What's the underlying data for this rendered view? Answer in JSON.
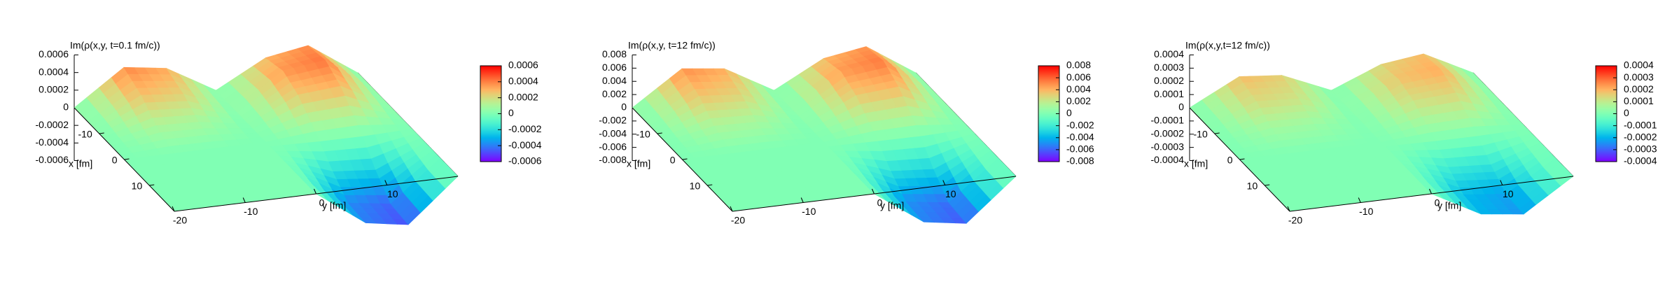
{
  "chart_data": [
    {
      "type": "surface",
      "title": "Im(ρ(x,y, t=0.1 fm/c))",
      "xlabel": "x [fm]",
      "ylabel": "y [fm]",
      "x": [
        -20,
        -13,
        -7,
        0,
        7,
        13,
        20
      ],
      "y": [
        -20,
        -13,
        -7,
        0,
        7,
        13,
        20
      ],
      "z": [
        [
          0,
          0.00039,
          0.00032,
          0,
          0.0003,
          0.00038,
          0
        ],
        [
          0,
          0.00028,
          0.00023,
          0,
          0.00036,
          0.00042,
          0
        ],
        [
          0,
          0.00011,
          9e-05,
          0,
          0.00026,
          0.0003,
          0
        ],
        [
          0,
          0,
          0,
          0,
          5e-05,
          6e-05,
          0
        ],
        [
          0,
          0,
          0,
          0,
          -0.0002,
          -0.00024,
          0
        ],
        [
          0,
          0,
          0,
          0,
          -0.00038,
          -0.00045,
          0
        ],
        [
          0,
          0,
          0,
          0,
          -0.0004,
          -0.00048,
          0
        ]
      ],
      "xlim": [
        -20,
        20
      ],
      "xticks": [
        -10,
        0,
        10
      ],
      "ylim": [
        -20,
        20
      ],
      "yticks": [
        -20,
        -10,
        0,
        10
      ],
      "zlim": [
        -0.0006,
        0.0006
      ],
      "zticks": [
        -0.0006,
        -0.0004,
        -0.0002,
        0,
        0.0002,
        0.0004,
        0.0006
      ],
      "cblim": [
        -0.0006,
        0.0006
      ],
      "cbticks": [
        -0.0006,
        -0.0004,
        -0.0002,
        0,
        0.0002,
        0.0004,
        0.0006
      ]
    },
    {
      "type": "surface",
      "title": "Im(ρ(x,y, t=12 fm/c))",
      "xlabel": "x [fm]",
      "ylabel": "y [fm]",
      "x": [
        -20,
        -13,
        -7,
        0,
        7,
        13,
        20
      ],
      "y": [
        -20,
        -13,
        -7,
        0,
        7,
        13,
        20
      ],
      "z": [
        [
          0,
          0.005,
          0.0042,
          0,
          0.0039,
          0.0049,
          0
        ],
        [
          0,
          0.0036,
          0.003,
          0,
          0.0047,
          0.0055,
          0
        ],
        [
          0,
          0.0014,
          0.0012,
          0,
          0.0034,
          0.0039,
          0
        ],
        [
          0,
          0,
          0,
          0,
          0.0007,
          0.0008,
          0
        ],
        [
          0,
          0,
          0,
          0,
          -0.0026,
          -0.0031,
          0
        ],
        [
          0,
          0,
          0,
          0,
          -0.0049,
          -0.0058,
          0
        ],
        [
          0,
          0,
          0,
          0,
          -0.0052,
          -0.0062,
          0
        ]
      ],
      "xlim": [
        -20,
        20
      ],
      "xticks": [
        -10,
        0,
        10
      ],
      "ylim": [
        -20,
        20
      ],
      "yticks": [
        -20,
        -10,
        0,
        10
      ],
      "zlim": [
        -0.008,
        0.008
      ],
      "zticks": [
        -0.008,
        -0.006,
        -0.004,
        -0.002,
        0,
        0.002,
        0.004,
        0.006,
        0.008
      ],
      "cblim": [
        -0.008,
        0.008
      ],
      "cbticks": [
        -0.008,
        -0.006,
        -0.004,
        -0.002,
        0,
        0.002,
        0.004,
        0.006,
        0.008
      ]
    },
    {
      "type": "surface",
      "title": "Im(ρ(x,y,t=12 fm/c))",
      "xlabel": "x [fm]",
      "ylabel": "y [fm]",
      "x": [
        -20,
        -13,
        -7,
        0,
        7,
        13,
        20
      ],
      "y": [
        -20,
        -13,
        -7,
        0,
        7,
        13,
        20
      ],
      "z": [
        [
          0,
          0.00019,
          0.00016,
          0,
          0.00015,
          0.00019,
          0
        ],
        [
          0,
          0.00014,
          0.00012,
          0,
          0.00018,
          0.00021,
          0
        ],
        [
          0,
          5.5e-05,
          4.5e-05,
          0,
          0.00013,
          0.00015,
          0
        ],
        [
          0,
          0,
          0,
          0,
          2.5e-05,
          3e-05,
          0
        ],
        [
          0,
          0,
          0,
          0,
          -0.0001,
          -0.00012,
          0
        ],
        [
          0,
          0,
          0,
          0,
          -0.00019,
          -0.000225,
          0
        ],
        [
          0,
          0,
          0,
          0,
          -0.0002,
          -0.00024,
          0
        ]
      ],
      "xlim": [
        -20,
        20
      ],
      "xticks": [
        -10,
        0,
        10
      ],
      "ylim": [
        -20,
        20
      ],
      "yticks": [
        -20,
        -10,
        0,
        10
      ],
      "zlim": [
        -0.0004,
        0.0004
      ],
      "zticks": [
        -0.0004,
        -0.0003,
        -0.0002,
        -0.0001,
        0,
        0.0001,
        0.0002,
        0.0003,
        0.0004
      ],
      "cblim": [
        -0.0004,
        0.0004
      ],
      "cbticks": [
        -0.0004,
        -0.0003,
        -0.0002,
        -0.0001,
        0,
        0.0001,
        0.0002,
        0.0003,
        0.0004
      ]
    }
  ]
}
